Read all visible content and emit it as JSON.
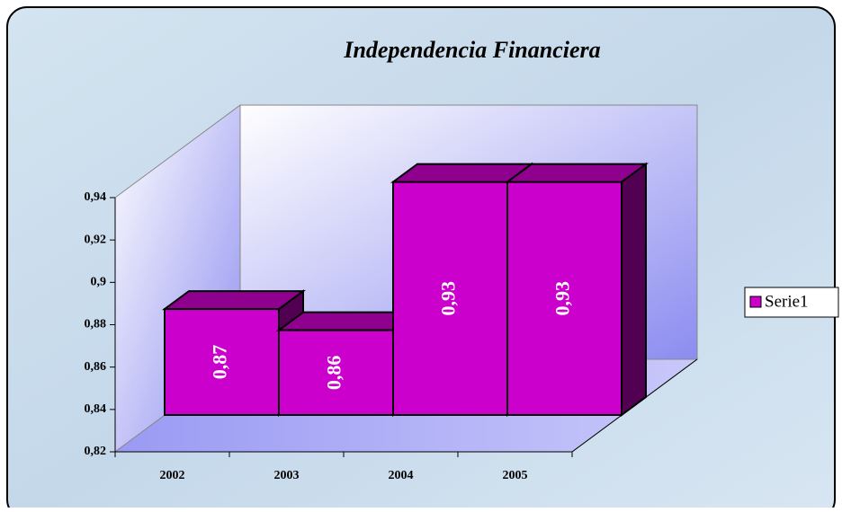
{
  "chart_data": {
    "type": "bar",
    "title": "Independencia Financiera",
    "categories": [
      "2002",
      "2003",
      "2004",
      "2005"
    ],
    "series": [
      {
        "name": "Serie1",
        "color": "#cc00cc",
        "values": [
          0.87,
          0.86,
          0.93,
          0.93
        ],
        "value_labels": [
          "0,87",
          "0,86",
          "0,93",
          "0,93"
        ]
      }
    ],
    "ylim": [
      0.82,
      0.94
    ],
    "yticks": [
      {
        "value": 0.82,
        "label": "0,82"
      },
      {
        "value": 0.84,
        "label": "0,84"
      },
      {
        "value": 0.86,
        "label": "0,86"
      },
      {
        "value": 0.88,
        "label": "0,88"
      },
      {
        "value": 0.9,
        "label": "0,9"
      },
      {
        "value": 0.92,
        "label": "0,92"
      },
      {
        "value": 0.94,
        "label": "0,94"
      }
    ],
    "legend": "right"
  }
}
